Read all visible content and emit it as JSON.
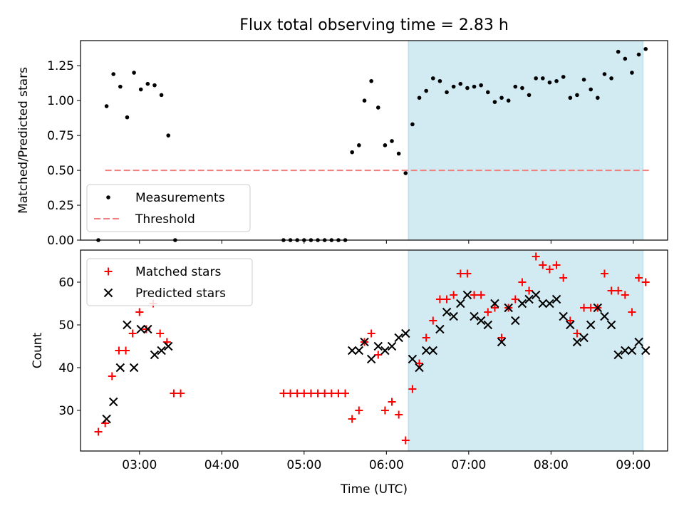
{
  "chart_data": [
    {
      "type": "scatter",
      "title": "Flux total observing time = 2.83 h",
      "ylabel": "Matched/Predicted stars",
      "xlabel": "",
      "ylim": [
        0,
        1.43
      ],
      "xlim": [
        "02:17",
        "09:25"
      ],
      "yticks": [
        "0.00",
        "0.25",
        "0.50",
        "0.75",
        "1.00",
        "1.25"
      ],
      "legend": "lower-left",
      "legend_entries": [
        "Measurements",
        "Threshold"
      ],
      "threshold": 0.5,
      "threshold_range": [
        "02:35",
        "09:12"
      ],
      "shaded_range": [
        "06:16",
        "09:07"
      ],
      "series": [
        {
          "name": "Measurements",
          "points": [
            [
              "02:30",
              0.0
            ],
            [
              "02:36",
              0.96
            ],
            [
              "02:41",
              1.19
            ],
            [
              "02:46",
              1.1
            ],
            [
              "02:51",
              0.88
            ],
            [
              "02:56",
              1.2
            ],
            [
              "03:01",
              1.08
            ],
            [
              "03:06",
              1.12
            ],
            [
              "03:11",
              1.11
            ],
            [
              "03:16",
              1.04
            ],
            [
              "03:21",
              0.75
            ],
            [
              "03:26",
              0.0
            ],
            [
              "04:45",
              0.0
            ],
            [
              "04:50",
              0.0
            ],
            [
              "04:55",
              0.0
            ],
            [
              "05:00",
              0.0
            ],
            [
              "05:05",
              0.0
            ],
            [
              "05:10",
              0.0
            ],
            [
              "05:15",
              0.0
            ],
            [
              "05:20",
              0.0
            ],
            [
              "05:25",
              0.0
            ],
            [
              "05:30",
              0.0
            ],
            [
              "05:35",
              0.63
            ],
            [
              "05:40",
              0.68
            ],
            [
              "05:44",
              1.0
            ],
            [
              "05:49",
              1.14
            ],
            [
              "05:54",
              0.95
            ],
            [
              "05:59",
              0.68
            ],
            [
              "06:04",
              0.71
            ],
            [
              "06:09",
              0.62
            ],
            [
              "06:14",
              0.48
            ],
            [
              "06:19",
              0.83
            ],
            [
              "06:24",
              1.02
            ],
            [
              "06:29",
              1.07
            ],
            [
              "06:34",
              1.16
            ],
            [
              "06:39",
              1.14
            ],
            [
              "06:44",
              1.06
            ],
            [
              "06:49",
              1.1
            ],
            [
              "06:54",
              1.12
            ],
            [
              "06:59",
              1.09
            ],
            [
              "07:04",
              1.1
            ],
            [
              "07:09",
              1.11
            ],
            [
              "07:14",
              1.06
            ],
            [
              "07:19",
              0.99
            ],
            [
              "07:24",
              1.02
            ],
            [
              "07:29",
              1.0
            ],
            [
              "07:34",
              1.1
            ],
            [
              "07:39",
              1.09
            ],
            [
              "07:44",
              1.04
            ],
            [
              "07:49",
              1.16
            ],
            [
              "07:54",
              1.16
            ],
            [
              "07:59",
              1.13
            ],
            [
              "08:04",
              1.14
            ],
            [
              "08:09",
              1.17
            ],
            [
              "08:14",
              1.02
            ],
            [
              "08:19",
              1.04
            ],
            [
              "08:24",
              1.15
            ],
            [
              "08:29",
              1.08
            ],
            [
              "08:34",
              1.02
            ],
            [
              "08:39",
              1.19
            ],
            [
              "08:44",
              1.16
            ],
            [
              "08:49",
              1.35
            ],
            [
              "08:54",
              1.3
            ],
            [
              "08:59",
              1.2
            ],
            [
              "09:04",
              1.33
            ],
            [
              "09:09",
              1.37
            ]
          ]
        }
      ]
    },
    {
      "type": "scatter",
      "title": "",
      "ylabel": "Count",
      "xlabel": "Time (UTC)",
      "ylim": [
        20.5,
        67.5
      ],
      "xlim": [
        "02:17",
        "09:25"
      ],
      "xticks": [
        "03:00",
        "04:00",
        "05:00",
        "06:00",
        "07:00",
        "08:00",
        "09:00"
      ],
      "yticks": [
        "30",
        "40",
        "50",
        "60"
      ],
      "legend": "top-left",
      "legend_entries": [
        "Matched stars",
        "Predicted stars"
      ],
      "shaded_range": [
        "06:16",
        "09:07"
      ],
      "series": [
        {
          "name": "Matched stars",
          "points": [
            [
              "02:30",
              25
            ],
            [
              "02:35",
              27
            ],
            [
              "02:40",
              38
            ],
            [
              "02:45",
              44
            ],
            [
              "02:50",
              44
            ],
            [
              "02:55",
              48
            ],
            [
              "03:00",
              53
            ],
            [
              "03:05",
              49
            ],
            [
              "03:10",
              55
            ],
            [
              "03:15",
              48
            ],
            [
              "03:20",
              46
            ],
            [
              "03:25",
              34
            ],
            [
              "03:30",
              34
            ],
            [
              "04:45",
              34
            ],
            [
              "04:50",
              34
            ],
            [
              "04:55",
              34
            ],
            [
              "05:00",
              34
            ],
            [
              "05:05",
              34
            ],
            [
              "05:10",
              34
            ],
            [
              "05:15",
              34
            ],
            [
              "05:20",
              34
            ],
            [
              "05:25",
              34
            ],
            [
              "05:30",
              34
            ],
            [
              "05:35",
              28
            ],
            [
              "05:40",
              30
            ],
            [
              "05:44",
              46
            ],
            [
              "05:49",
              48
            ],
            [
              "05:54",
              43
            ],
            [
              "05:59",
              30
            ],
            [
              "06:04",
              32
            ],
            [
              "06:09",
              29
            ],
            [
              "06:14",
              23
            ],
            [
              "06:19",
              35
            ],
            [
              "06:24",
              41
            ],
            [
              "06:29",
              47
            ],
            [
              "06:34",
              51
            ],
            [
              "06:39",
              56
            ],
            [
              "06:44",
              56
            ],
            [
              "06:49",
              57
            ],
            [
              "06:54",
              62
            ],
            [
              "06:59",
              62
            ],
            [
              "07:04",
              57
            ],
            [
              "07:09",
              57
            ],
            [
              "07:14",
              53
            ],
            [
              "07:19",
              54
            ],
            [
              "07:24",
              47
            ],
            [
              "07:29",
              54
            ],
            [
              "07:34",
              56
            ],
            [
              "07:39",
              60
            ],
            [
              "07:44",
              58
            ],
            [
              "07:49",
              66
            ],
            [
              "07:54",
              64
            ],
            [
              "07:59",
              63
            ],
            [
              "08:04",
              64
            ],
            [
              "08:09",
              61
            ],
            [
              "08:14",
              51
            ],
            [
              "08:19",
              48
            ],
            [
              "08:24",
              54
            ],
            [
              "08:29",
              54
            ],
            [
              "08:34",
              54
            ],
            [
              "08:39",
              62
            ],
            [
              "08:44",
              58
            ],
            [
              "08:49",
              58
            ],
            [
              "08:54",
              57
            ],
            [
              "08:59",
              53
            ],
            [
              "09:04",
              61
            ],
            [
              "09:09",
              60
            ]
          ]
        },
        {
          "name": "Predicted stars",
          "points": [
            [
              "02:36",
              28
            ],
            [
              "02:41",
              32
            ],
            [
              "02:46",
              40
            ],
            [
              "02:51",
              50
            ],
            [
              "02:56",
              40
            ],
            [
              "03:01",
              49
            ],
            [
              "03:06",
              49
            ],
            [
              "03:11",
              43
            ],
            [
              "03:16",
              44
            ],
            [
              "03:21",
              45
            ],
            [
              "05:35",
              44
            ],
            [
              "05:40",
              44
            ],
            [
              "05:44",
              46
            ],
            [
              "05:49",
              42
            ],
            [
              "05:54",
              45
            ],
            [
              "05:59",
              44
            ],
            [
              "06:04",
              45
            ],
            [
              "06:09",
              47
            ],
            [
              "06:14",
              48
            ],
            [
              "06:19",
              42
            ],
            [
              "06:24",
              40
            ],
            [
              "06:29",
              44
            ],
            [
              "06:34",
              44
            ],
            [
              "06:39",
              49
            ],
            [
              "06:44",
              53
            ],
            [
              "06:49",
              52
            ],
            [
              "06:54",
              55
            ],
            [
              "06:59",
              57
            ],
            [
              "07:04",
              52
            ],
            [
              "07:09",
              51
            ],
            [
              "07:14",
              50
            ],
            [
              "07:19",
              55
            ],
            [
              "07:24",
              46
            ],
            [
              "07:29",
              54
            ],
            [
              "07:34",
              51
            ],
            [
              "07:39",
              55
            ],
            [
              "07:44",
              56
            ],
            [
              "07:49",
              57
            ],
            [
              "07:54",
              55
            ],
            [
              "07:59",
              55
            ],
            [
              "08:04",
              56
            ],
            [
              "08:09",
              52
            ],
            [
              "08:14",
              50
            ],
            [
              "08:19",
              46
            ],
            [
              "08:24",
              47
            ],
            [
              "08:29",
              50
            ],
            [
              "08:34",
              54
            ],
            [
              "08:39",
              52
            ],
            [
              "08:44",
              50
            ],
            [
              "08:49",
              43
            ],
            [
              "08:54",
              44
            ],
            [
              "08:59",
              44
            ],
            [
              "09:04",
              46
            ],
            [
              "09:09",
              44
            ]
          ]
        }
      ]
    }
  ],
  "colors": {
    "measurements": "#000000",
    "threshold": "#f08080",
    "matched": "#ff0000",
    "predicted": "#000000",
    "shade": "#add8e6"
  }
}
